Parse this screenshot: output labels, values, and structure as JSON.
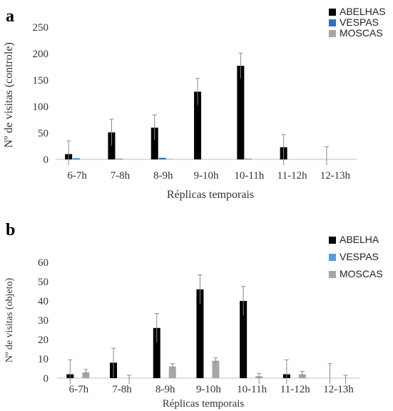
{
  "chart_data": [
    {
      "panel": "a",
      "type": "bar",
      "categories": [
        "6-7h",
        "7-8h",
        "8-9h",
        "9-10h",
        "10-11h",
        "11-12h",
        "12-13h"
      ],
      "ylabel": "Nº de visitas (controle)",
      "xlabel": "Réplicas temporais",
      "ylim": [
        0,
        250
      ],
      "yticks": [
        0,
        50,
        100,
        150,
        200,
        250
      ],
      "legend_position": "top-right",
      "series": [
        {
          "name": "ABELHAS",
          "color": "#000000",
          "values": [
            10,
            51,
            60,
            128,
            177,
            23,
            0
          ],
          "errors": [
            25,
            25,
            24,
            25,
            24,
            24,
            24
          ]
        },
        {
          "name": "VESPAS",
          "color": "#2e75b6",
          "values": [
            2,
            1,
            3,
            0,
            1,
            0,
            0
          ],
          "errors": [
            0,
            0,
            0,
            0,
            0,
            0,
            0
          ]
        },
        {
          "name": "MOSCAS",
          "color": "#a6a6a6",
          "values": [
            0,
            0,
            1,
            0,
            0,
            0,
            0
          ],
          "errors": [
            0,
            0,
            0,
            0,
            0,
            0,
            0
          ]
        }
      ]
    },
    {
      "panel": "b",
      "type": "bar",
      "categories": [
        "6-7h",
        "7-8h",
        "8-9h",
        "9-10h",
        "10-11h",
        "11-12h",
        "12-13h"
      ],
      "ylabel": "Nº de visitas (objeto)",
      "xlabel": "Réplicas temporais",
      "ylim": [
        0,
        60
      ],
      "yticks": [
        0,
        10,
        20,
        30,
        40,
        50,
        60
      ],
      "legend_position": "top-right",
      "series": [
        {
          "name": "ABELHA",
          "color": "#000000",
          "values": [
            2,
            8,
            26,
            46,
            40,
            2,
            0
          ],
          "errors": [
            7.5,
            7.5,
            7.5,
            7.5,
            7.5,
            7.5,
            7.5
          ]
        },
        {
          "name": "VESPAS",
          "color": "#5b9bd5",
          "values": [
            0,
            0,
            0,
            0,
            0,
            0,
            0
          ],
          "errors": [
            0,
            0,
            0,
            0,
            0,
            0,
            0
          ]
        },
        {
          "name": "MOSCAS",
          "color": "#a6a6a6",
          "values": [
            3,
            0,
            6,
            9,
            1,
            2,
            0
          ],
          "errors": [
            1.5,
            1.5,
            1.5,
            1.5,
            1.5,
            1.5,
            1.5
          ]
        }
      ]
    }
  ]
}
